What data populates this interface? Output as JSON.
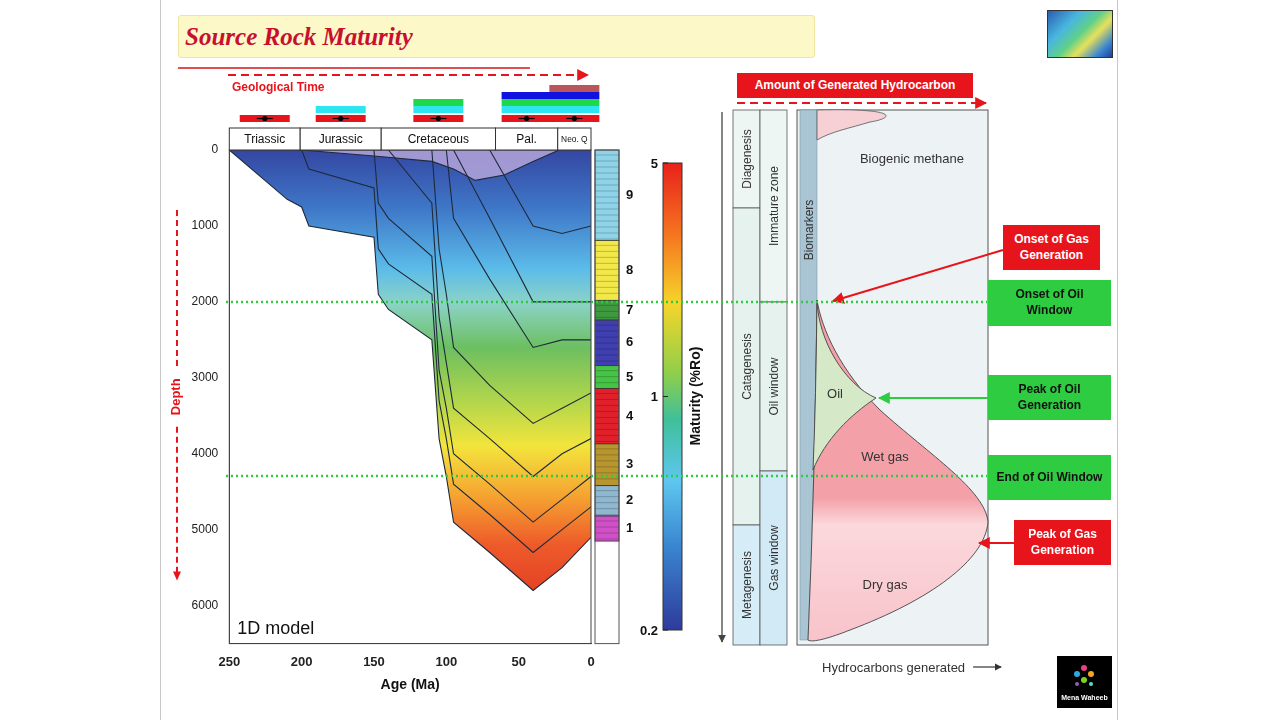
{
  "header": {
    "title": "Source Rock Maturity"
  },
  "chart_data": {
    "type": "line",
    "time_label": "Geological Time",
    "panel_label": "1D model",
    "x_label": "Age (Ma)",
    "y_label": "Depth",
    "xlim": [
      250,
      0
    ],
    "xticks": [
      250,
      200,
      150,
      100,
      50,
      0
    ],
    "ylim": [
      6500,
      0
    ],
    "yticks": [
      0,
      1000,
      2000,
      3000,
      4000,
      5000,
      6000
    ],
    "grid": false,
    "color": "#1e2a3a",
    "periods": [
      {
        "label": "Triassic",
        "start": 250,
        "end": 201
      },
      {
        "label": "Jurassic",
        "start": 201,
        "end": 145
      },
      {
        "label": "Cretaceous",
        "start": 145,
        "end": 66
      },
      {
        "label": "Pal.",
        "start": 66,
        "end": 23
      },
      {
        "label": "Neo. Q",
        "start": 23,
        "end": 0
      }
    ],
    "horizons": [
      {
        "x": [
          250,
          210,
          200,
          195,
          150,
          147,
          140,
          110,
          105,
          100,
          95,
          70,
          40,
          20,
          0
        ],
        "y": [
          0,
          650,
          750,
          1000,
          1150,
          1900,
          2100,
          2500,
          3800,
          4300,
          4900,
          5300,
          5800,
          5500,
          5100
        ]
      },
      {
        "x": [
          200,
          195,
          150,
          147,
          140,
          110,
          105,
          100,
          95,
          70,
          40,
          20,
          0
        ],
        "y": [
          0,
          250,
          500,
          1300,
          1500,
          1900,
          3300,
          3800,
          4400,
          4800,
          5300,
          5000,
          4700
        ]
      },
      {
        "x": [
          150,
          147,
          140,
          110,
          105,
          100,
          95,
          70,
          40,
          20,
          0
        ],
        "y": [
          0,
          700,
          900,
          1400,
          2900,
          3400,
          4000,
          4400,
          4900,
          4600,
          4300
        ]
      },
      {
        "x": [
          140,
          110,
          105,
          100,
          95,
          70,
          40,
          20,
          0
        ],
        "y": [
          0,
          700,
          2200,
          2800,
          3400,
          3800,
          4300,
          4000,
          3800
        ]
      },
      {
        "x": [
          110,
          105,
          100,
          95,
          70,
          40,
          20,
          0
        ],
        "y": [
          0,
          1300,
          1900,
          2600,
          3100,
          3600,
          3400,
          3200
        ]
      },
      {
        "x": [
          100,
          95,
          70,
          40,
          20,
          0
        ],
        "y": [
          0,
          900,
          1700,
          2600,
          2500,
          2500
        ]
      },
      {
        "x": [
          95,
          70,
          40,
          20,
          0
        ],
        "y": [
          0,
          900,
          2000,
          2000,
          2000
        ]
      },
      {
        "x": [
          70,
          40,
          20,
          0
        ],
        "y": [
          0,
          1000,
          1100,
          1000
        ]
      },
      {
        "x": [
          200,
          150,
          110,
          95,
          80,
          60,
          40,
          22
        ],
        "y": [
          0,
          80,
          150,
          250,
          400,
          330,
          150,
          0
        ]
      }
    ],
    "units": [
      {
        "label": "9",
        "top": 0,
        "base": 1190,
        "color": "#8fd3e8"
      },
      {
        "label": "8",
        "top": 1190,
        "base": 1980,
        "color": "#f2e84a"
      },
      {
        "label": "7",
        "top": 1980,
        "base": 2240,
        "color": "#3f9a3f"
      },
      {
        "label": "6",
        "top": 2240,
        "base": 2840,
        "color": "#3f3fb0"
      },
      {
        "label": "5",
        "top": 2840,
        "base": 3140,
        "color": "#45c445"
      },
      {
        "label": "4",
        "top": 3140,
        "base": 3870,
        "color": "#e0202a"
      },
      {
        "label": "3",
        "top": 3870,
        "base": 4420,
        "color": "#b8962e"
      },
      {
        "label": "2",
        "top": 4420,
        "base": 4820,
        "color": "#8fb7d0"
      },
      {
        "label": "1",
        "top": 4820,
        "base": 5150,
        "color": "#d050c8"
      }
    ],
    "color_bar": {
      "title": "Maturity (%Ro)",
      "range": [
        0.2,
        5
      ],
      "ticks": [
        0.2,
        1,
        5
      ],
      "log": true
    }
  },
  "generation_diagram": {
    "title": "Amount of Generated Hydrocarbon",
    "x_label": "Hydrocarbons generated",
    "stages": [
      "Diagenesis",
      "Catagenesis",
      "Metagenesis"
    ],
    "zones": [
      "Immature zone",
      "Oil window",
      "Gas window"
    ],
    "biomarkers": "Biomarkers",
    "products": [
      "Biogenic methane",
      "Oil",
      "Wet gas",
      "Dry gas"
    ],
    "annotations": [
      {
        "text": "Onset of Gas Generation",
        "color": "#e8141b"
      },
      {
        "text": "Onset of Oil Window",
        "color": "#2ecc40"
      },
      {
        "text": "Peak of Oil Generation",
        "color": "#2ecc40"
      },
      {
        "text": "End of Oil Window",
        "color": "#2ecc40"
      },
      {
        "text": "Peak of Gas Generation",
        "color": "#e8141b"
      }
    ]
  },
  "logo": {
    "text": "Mena Waheeb"
  }
}
